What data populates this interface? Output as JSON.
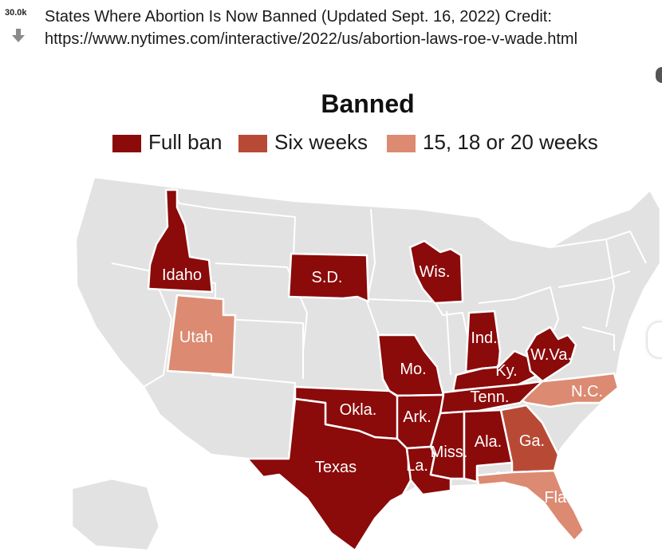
{
  "post": {
    "vote_count": "30.0k",
    "title_line1": "States Where Abortion Is Now Banned (Updated Sept. 16, 2022) Credit:",
    "title_line2": "https://www.nytimes.com/interactive/2022/us/abortion-laws-roe-v-wade.html"
  },
  "map": {
    "title": "Banned",
    "legend": [
      {
        "label": "Full ban",
        "color": "#8b0a0a"
      },
      {
        "label": "Six weeks",
        "color": "#b84a35"
      },
      {
        "label": "15, 18 or 20 weeks",
        "color": "#dc8a72"
      }
    ],
    "colors": {
      "full_ban": "#8b0a0a",
      "six_weeks": "#b84a35",
      "weeks_15_20": "#dc8a72",
      "other": "#e2e2e2"
    },
    "states": [
      {
        "name": "Idaho",
        "status": "Full ban"
      },
      {
        "name": "S.D.",
        "status": "Full ban"
      },
      {
        "name": "Wis.",
        "status": "Full ban"
      },
      {
        "name": "Utah",
        "status": "15, 18 or 20 weeks"
      },
      {
        "name": "Ind.",
        "status": "Full ban"
      },
      {
        "name": "Mo.",
        "status": "Full ban"
      },
      {
        "name": "Ky.",
        "status": "Full ban"
      },
      {
        "name": "W.Va.",
        "status": "Full ban"
      },
      {
        "name": "N.C.",
        "status": "15, 18 or 20 weeks"
      },
      {
        "name": "Okla.",
        "status": "Full ban"
      },
      {
        "name": "Ark.",
        "status": "Full ban"
      },
      {
        "name": "Tenn.",
        "status": "Full ban"
      },
      {
        "name": "Texas",
        "status": "Full ban"
      },
      {
        "name": "La.",
        "status": "Full ban"
      },
      {
        "name": "Miss.",
        "status": "Full ban"
      },
      {
        "name": "Ala.",
        "status": "Full ban"
      },
      {
        "name": "Ga.",
        "status": "Six weeks"
      },
      {
        "name": "Fla.",
        "status": "15, 18 or 20 weeks"
      }
    ]
  }
}
